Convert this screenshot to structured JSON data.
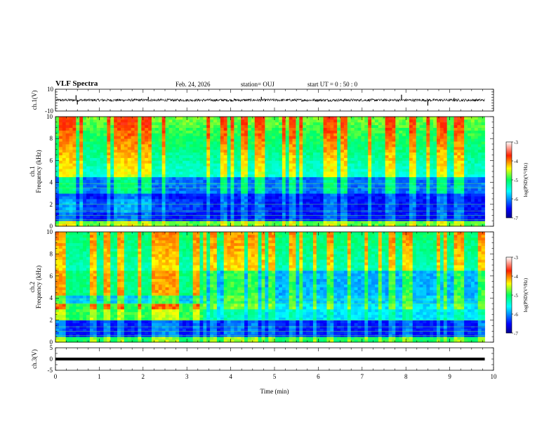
{
  "header": {
    "title": "VLF Spectra",
    "date": "Feb. 24, 2026",
    "station": "station= OUJ",
    "start": "start  UT =   0 : 50 : 0"
  },
  "chart_data": [
    {
      "type": "line",
      "name": "ch1-waveform",
      "ylabel": "ch.1(V)",
      "yticks": [
        "10",
        "-10"
      ],
      "ylim": [
        -10,
        10
      ],
      "xlim": [
        0,
        10
      ],
      "x_end": 9.8,
      "baseline": 0,
      "spikes": [
        {
          "x": 0.47,
          "y": 4.5
        },
        {
          "x": 0.5,
          "y": -4
        },
        {
          "x": 2.12,
          "y": 3
        },
        {
          "x": 4.7,
          "y": 3
        },
        {
          "x": 7.9,
          "y": 5
        },
        {
          "x": 8.5,
          "y": -5
        },
        {
          "x": 9.1,
          "y": 2
        }
      ]
    },
    {
      "type": "heatmap",
      "name": "ch1-spectrogram",
      "ylabel_line1": "ch.1",
      "ylabel_line2": "Frequency (kHz)",
      "yticks": [
        "0",
        "2",
        "4",
        "6",
        "8",
        "10"
      ],
      "ylim": [
        0,
        10
      ],
      "xlim": [
        0,
        10
      ],
      "x_end": 9.8,
      "colorbar": {
        "ticks": [
          "-3",
          "-4",
          "-5",
          "-6",
          "-7"
        ],
        "label": "log(PSD)(V²/Hz)",
        "range": [
          -7,
          -3
        ]
      }
    },
    {
      "type": "heatmap",
      "name": "ch2-spectrogram",
      "ylabel_line1": "ch.2",
      "ylabel_line2": "Frequency (kHz)",
      "yticks": [
        "0",
        "2",
        "4",
        "6",
        "8",
        "10"
      ],
      "ylim": [
        0,
        10
      ],
      "xlim": [
        0,
        10
      ],
      "x_end": 9.8,
      "colorbar": {
        "ticks": [
          "-3",
          "-4",
          "-5",
          "-6",
          "-7"
        ],
        "label": "log(PSD)(V²/Hz)",
        "range": [
          -7,
          -3
        ]
      }
    },
    {
      "type": "line",
      "name": "ch3-waveform",
      "ylabel": "ch.3(V)",
      "yticks": [
        "5",
        "0",
        "-5"
      ],
      "ylim": [
        -5,
        5
      ],
      "xlim": [
        0,
        10
      ],
      "x_end": 9.8,
      "baseline": 0
    }
  ],
  "xaxis": {
    "label": "Time (min)",
    "ticks": [
      "0",
      "1",
      "2",
      "3",
      "4",
      "5",
      "6",
      "7",
      "8",
      "9",
      "10"
    ]
  },
  "colors": {
    "axis": "#000000",
    "background": "#ffffff"
  }
}
